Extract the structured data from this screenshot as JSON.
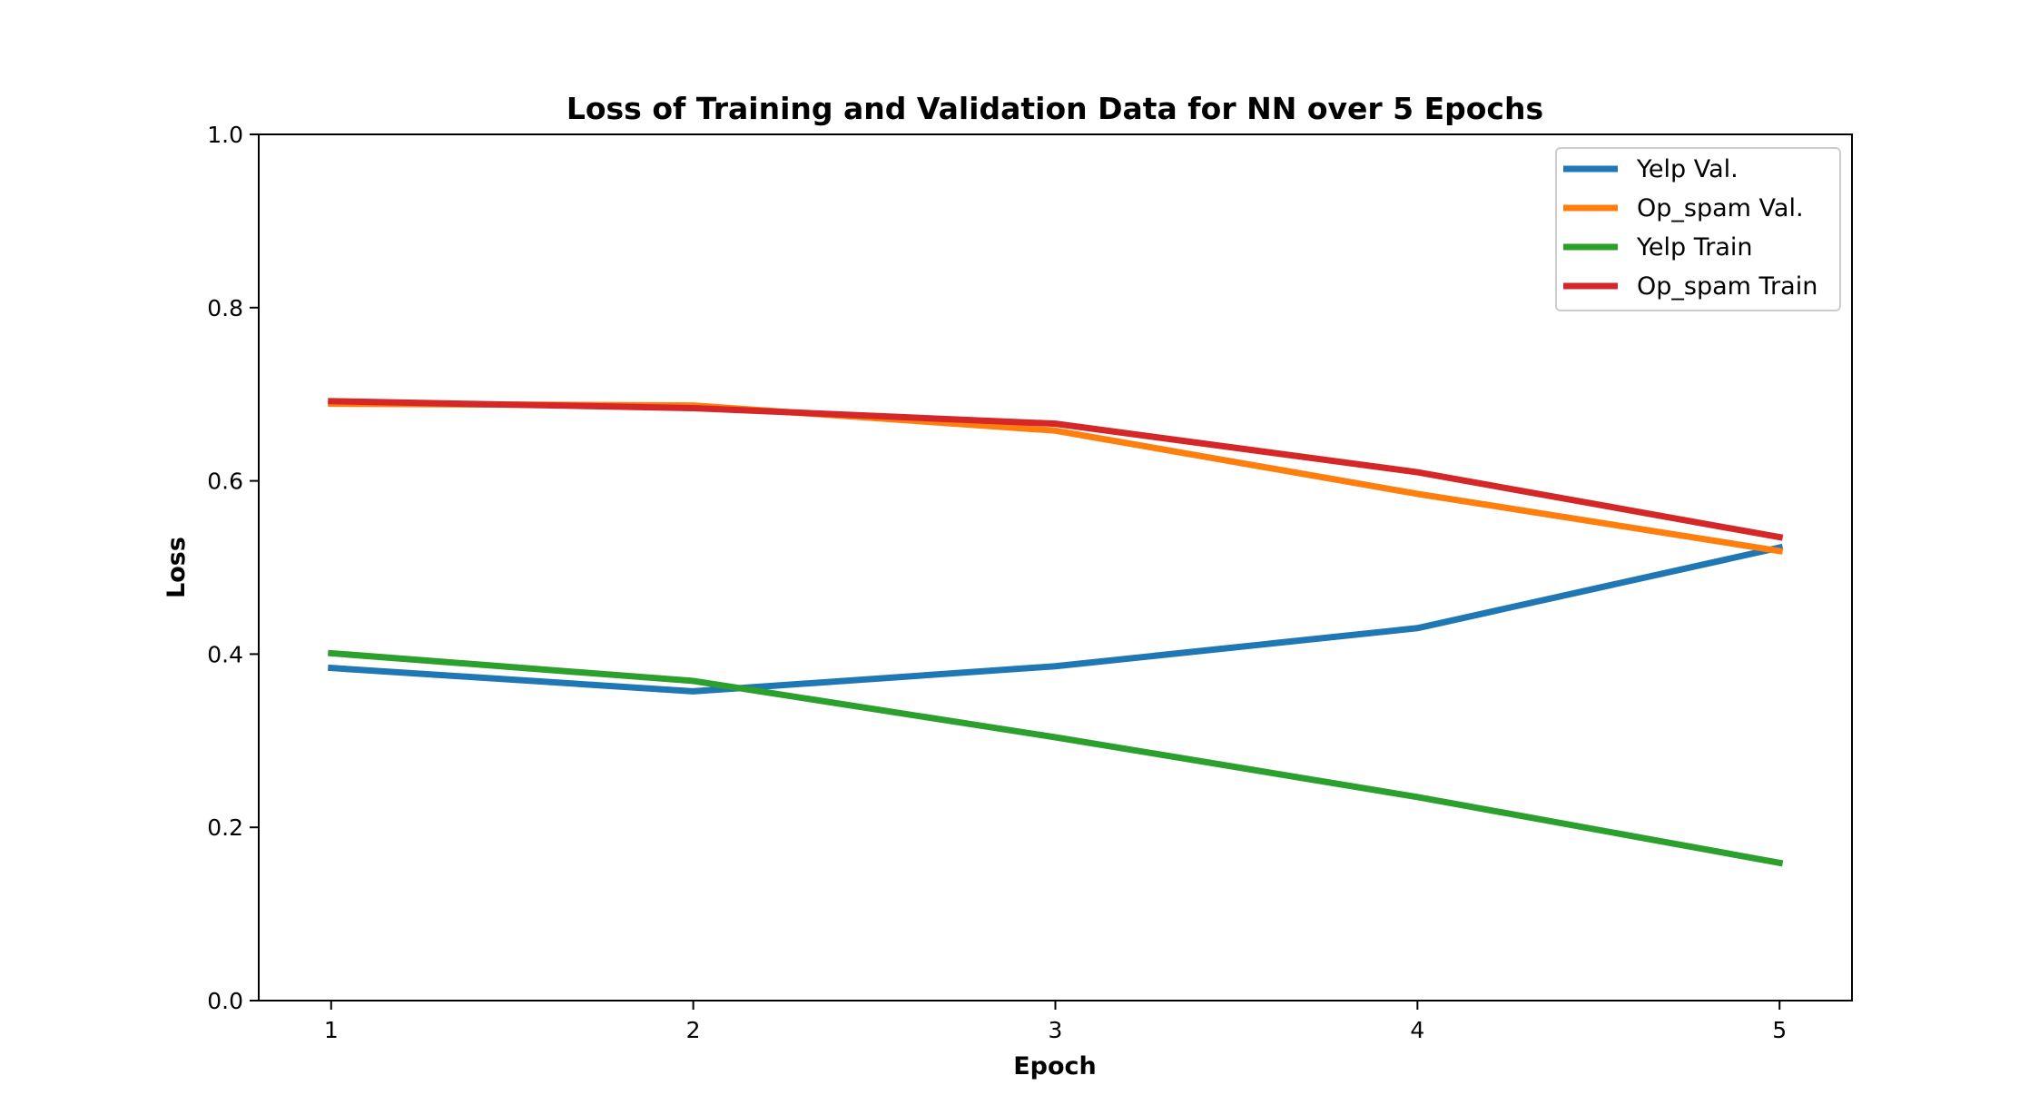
{
  "chart_data": {
    "type": "line",
    "title": "Loss of Training and Validation Data for NN over 5 Epochs",
    "xlabel": "Epoch",
    "ylabel": "Loss",
    "x": [
      1,
      2,
      3,
      4,
      5
    ],
    "xlim": [
      0.8,
      5.2
    ],
    "ylim": [
      0.0,
      1.0
    ],
    "xticks": [
      1,
      2,
      3,
      4,
      5
    ],
    "xtick_labels": [
      "1",
      "2",
      "3",
      "4",
      "5"
    ],
    "yticks": [
      0.0,
      0.2,
      0.4,
      0.6,
      0.8,
      1.0
    ],
    "ytick_labels": [
      "0.0",
      "0.2",
      "0.4",
      "0.6",
      "0.8",
      "1.0"
    ],
    "grid": false,
    "legend_position": "top-right",
    "series": [
      {
        "name": "Yelp Val.",
        "color": "#1f77b4",
        "values": [
          0.384,
          0.357,
          0.386,
          0.43,
          0.523
        ]
      },
      {
        "name": "Op_spam Val.",
        "color": "#ff7f0e",
        "values": [
          0.689,
          0.687,
          0.658,
          0.585,
          0.519
        ]
      },
      {
        "name": "Yelp Train",
        "color": "#2ca02c",
        "values": [
          0.401,
          0.369,
          0.304,
          0.235,
          0.159
        ]
      },
      {
        "name": "Op_spam Train",
        "color": "#d62728",
        "values": [
          0.692,
          0.684,
          0.666,
          0.61,
          0.535
        ]
      }
    ]
  }
}
